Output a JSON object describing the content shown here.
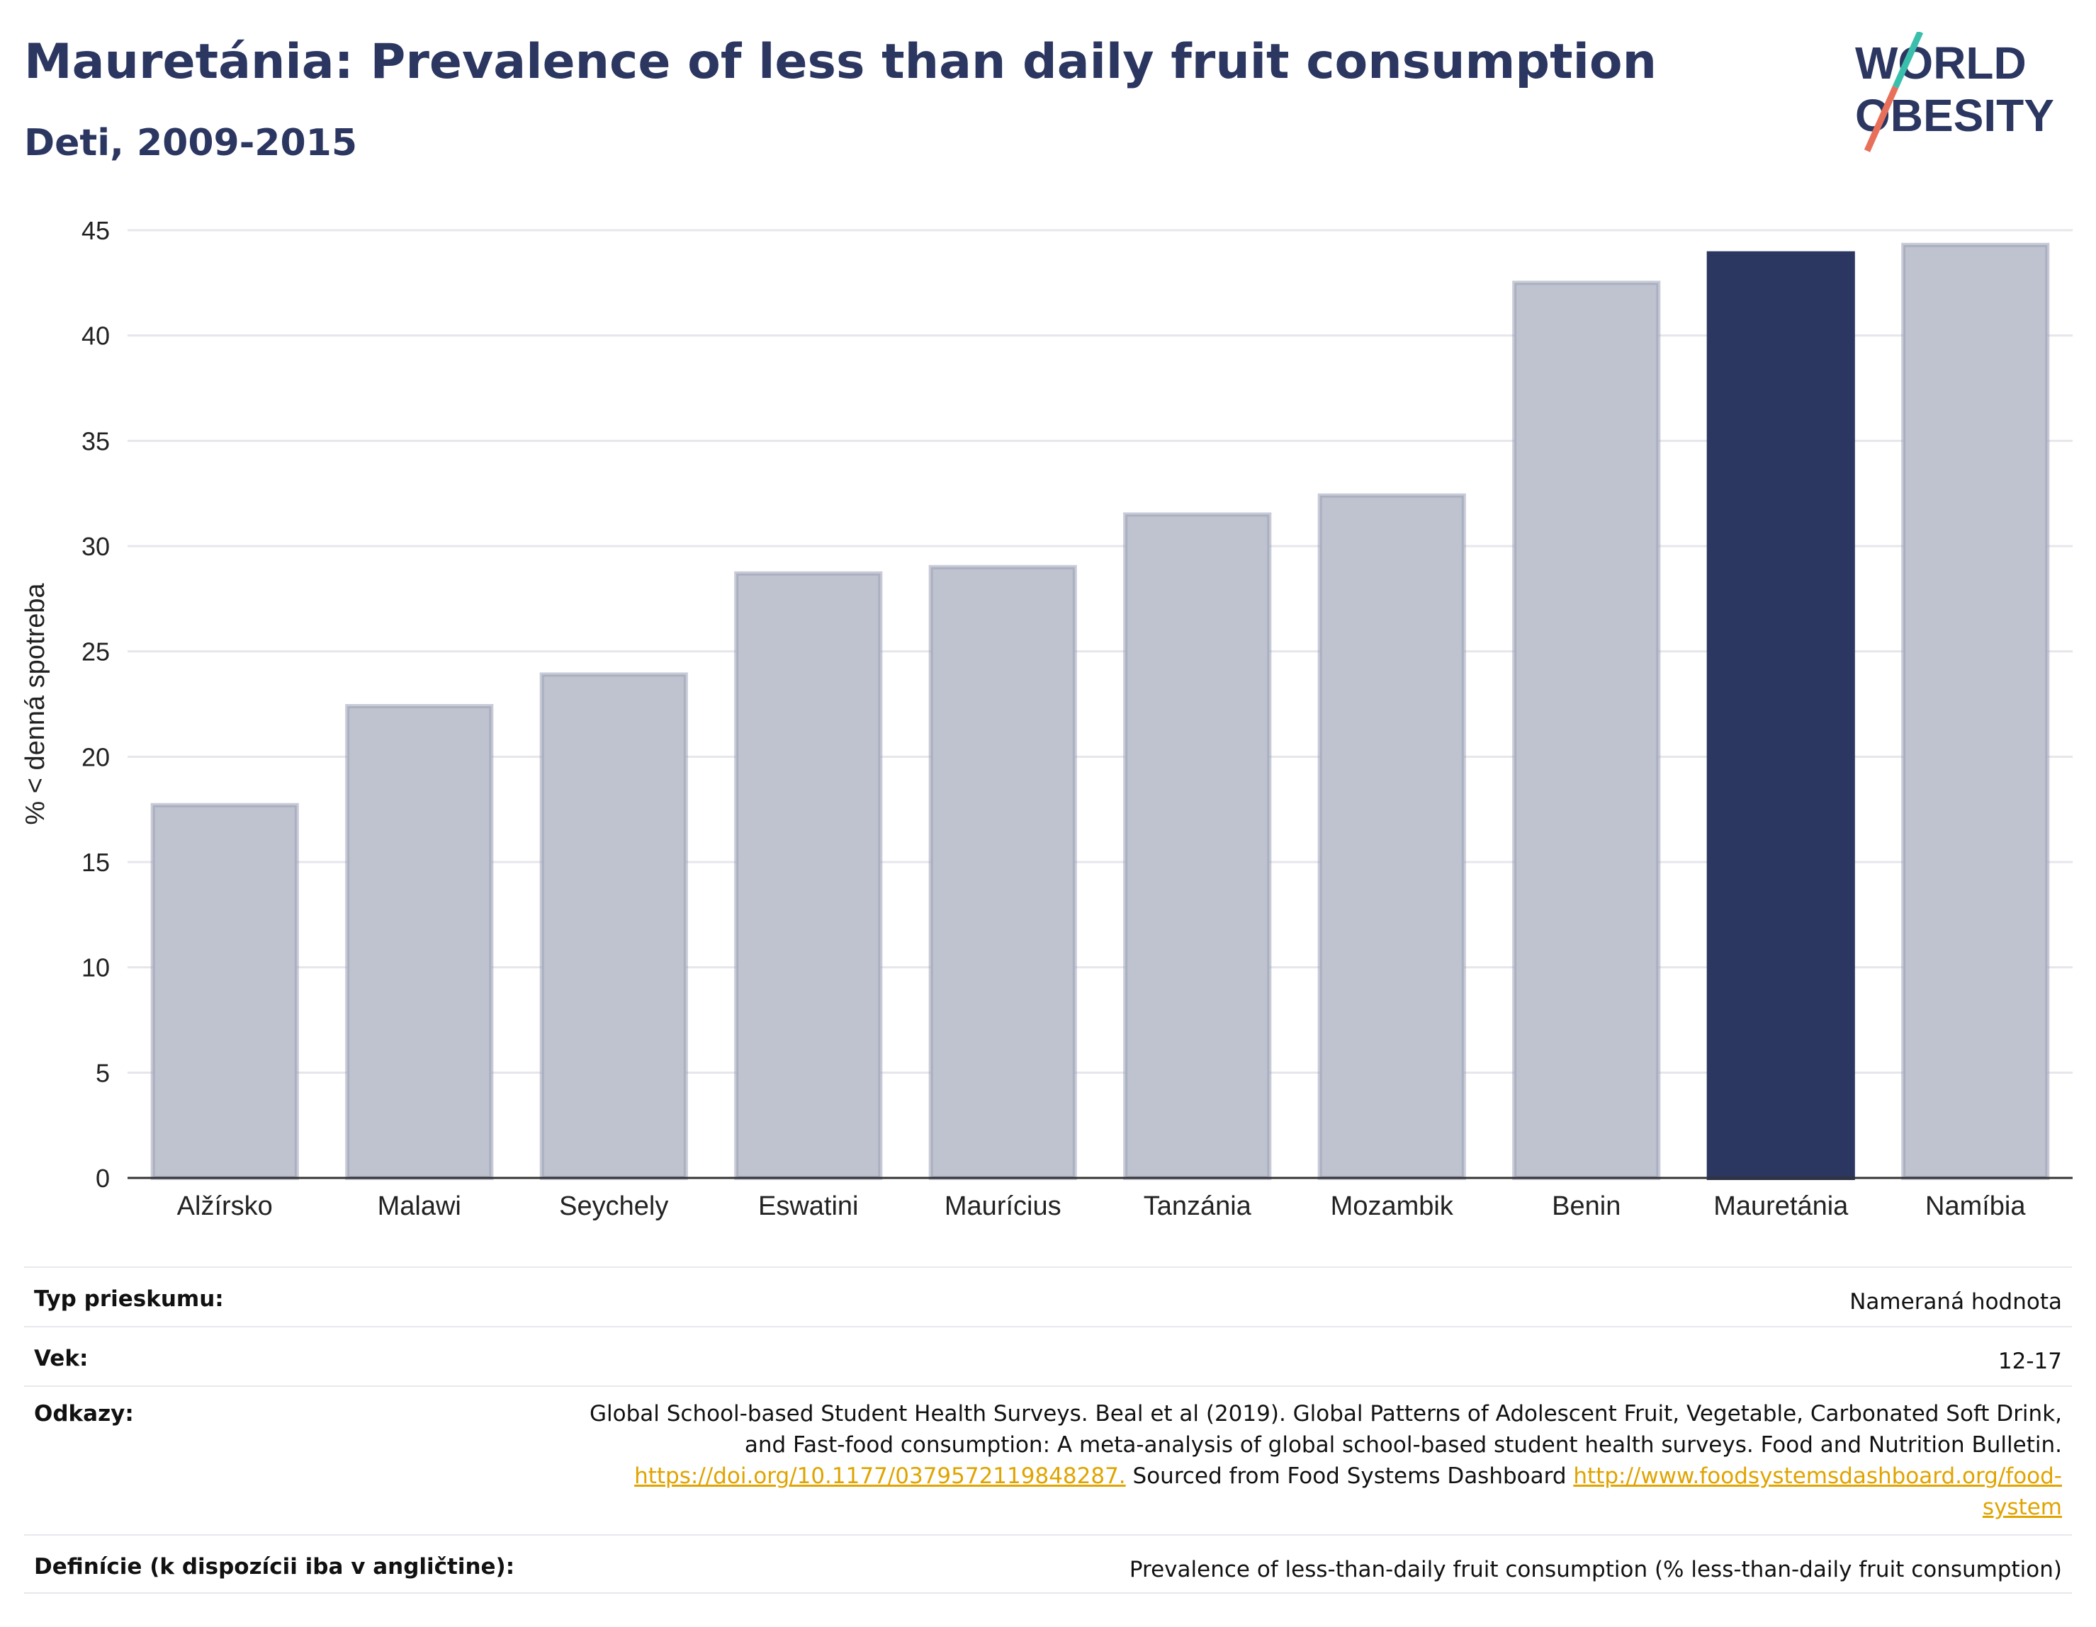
{
  "header": {
    "title": "Mauretánia: Prevalence of less than daily fruit consumption",
    "subtitle": "Deti, 2009-2015"
  },
  "logo": {
    "line1": "WORLD",
    "line2": "OBESITY",
    "accent_teal": "#3bbfad",
    "accent_coral": "#e8705a"
  },
  "colors": {
    "highlight": "#2b3661",
    "bar": "#bfc3cf",
    "bar_border": "#9aa0b6",
    "text": "#2b3661"
  },
  "chart_data": {
    "type": "bar",
    "title": "Mauretánia: Prevalence of less than daily fruit consumption",
    "subtitle": "Deti, 2009-2015",
    "ylabel": "% < denná spotreba",
    "xlabel": "",
    "ylim": [
      0,
      45
    ],
    "yticks": [
      0,
      5,
      10,
      15,
      20,
      25,
      30,
      35,
      40,
      45
    ],
    "grid": true,
    "categories": [
      "Alžírsko",
      "Malawi",
      "Seychely",
      "Eswatini",
      "Maurícius",
      "Tanzánia",
      "Mozambik",
      "Benin",
      "Mauretánia",
      "Namíbia"
    ],
    "values": [
      17.7,
      22.4,
      23.9,
      28.7,
      29.0,
      31.5,
      32.4,
      42.5,
      43.9,
      44.3
    ],
    "highlight": "Mauretánia"
  },
  "info": {
    "rows": [
      {
        "label": "Typ prieskumu:",
        "value": "Nameraná hodnota"
      },
      {
        "label": "Vek:",
        "value": "12-17"
      },
      {
        "label": "Odkazy:",
        "value_line1": "Global School-based Student Health Surveys. Beal et al (2019). Global Patterns of Adolescent Fruit, Vegetable, Carbonated Soft Drink,",
        "value_line2": "and Fast-food consumption: A meta-analysis of global school-based student health surveys. Food and Nutrition Bulletin.",
        "link1": "https://doi.org/10.1177/0379572119848287.",
        "text_mid": " Sourced from Food Systems Dashboard ",
        "link2a": "http://www.foodsystemsdashboard.org/food-",
        "link2b": "system"
      },
      {
        "label": "Definície (k dispozícii iba v angličtine):",
        "value": "Prevalence of less-than-daily fruit consumption (% less-than-daily fruit consumption)"
      }
    ]
  }
}
